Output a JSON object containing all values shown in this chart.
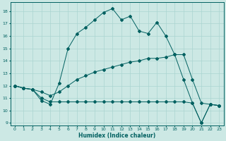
{
  "title": "",
  "xlabel": "Humidex (Indice chaleur)",
  "ylabel": "",
  "bg_color": "#cce8e4",
  "grid_color": "#aad4d0",
  "line_color": "#006060",
  "xlim": [
    -0.5,
    23.5
  ],
  "ylim": [
    8.8,
    18.7
  ],
  "yticks": [
    9,
    10,
    11,
    12,
    13,
    14,
    15,
    16,
    17,
    18
  ],
  "xticks": [
    0,
    1,
    2,
    3,
    4,
    5,
    6,
    7,
    8,
    9,
    10,
    11,
    12,
    13,
    14,
    15,
    16,
    17,
    18,
    19,
    20,
    21,
    22,
    23
  ],
  "series": [
    {
      "x": [
        0,
        1,
        2,
        3,
        4,
        5,
        6,
        7,
        8,
        9,
        10,
        11,
        12,
        13,
        14,
        15,
        16,
        17,
        18,
        19,
        20,
        21,
        22,
        23
      ],
      "y": [
        12.0,
        11.8,
        11.7,
        10.8,
        10.5,
        12.2,
        15.0,
        16.2,
        16.7,
        17.3,
        17.9,
        18.2,
        17.3,
        17.6,
        16.4,
        16.2,
        17.1,
        16.0,
        14.5,
        12.5,
        10.6,
        9.0,
        10.5,
        10.4
      ]
    },
    {
      "x": [
        0,
        1,
        2,
        3,
        4,
        5,
        6,
        7,
        8,
        9,
        10,
        11,
        12,
        13,
        14,
        15,
        16,
        17,
        18,
        19,
        20,
        21,
        22,
        23
      ],
      "y": [
        12.0,
        11.8,
        11.7,
        11.5,
        11.2,
        11.5,
        12.0,
        12.5,
        12.8,
        13.1,
        13.3,
        13.5,
        13.7,
        13.9,
        14.0,
        14.2,
        14.2,
        14.3,
        14.5,
        14.5,
        12.5,
        10.6,
        10.5,
        10.4
      ]
    },
    {
      "x": [
        0,
        1,
        2,
        3,
        4,
        5,
        6,
        7,
        8,
        9,
        10,
        11,
        12,
        13,
        14,
        15,
        16,
        17,
        18,
        19,
        20,
        21,
        22,
        23
      ],
      "y": [
        12.0,
        11.8,
        11.7,
        11.0,
        10.7,
        10.7,
        10.7,
        10.7,
        10.7,
        10.7,
        10.7,
        10.7,
        10.7,
        10.7,
        10.7,
        10.7,
        10.7,
        10.7,
        10.7,
        10.7,
        10.6,
        9.0,
        10.5,
        10.4
      ]
    }
  ]
}
